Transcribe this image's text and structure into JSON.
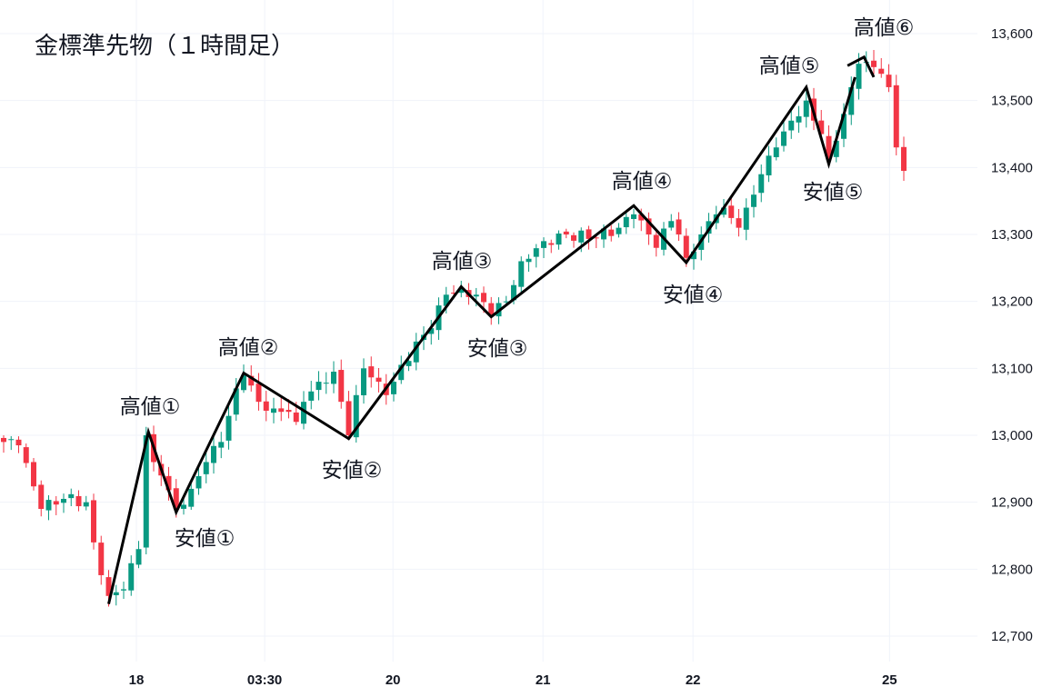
{
  "chart_data": {
    "type": "candlestick",
    "title": "金標準先物（１時間足）",
    "ylim": [
      12650,
      13660
    ],
    "yticks": [
      12700,
      12800,
      12900,
      13000,
      13100,
      13200,
      13300,
      13400,
      13500,
      13600
    ],
    "ytick_labels": [
      "12,700",
      "12,800",
      "12,900",
      "13,000",
      "13,100",
      "13,200",
      "13,300",
      "13,400",
      "13,500",
      "13,600"
    ],
    "xticks": [
      {
        "index": 17.7,
        "label": "18"
      },
      {
        "index": 34.8,
        "label": "03:30"
      },
      {
        "index": 51.9,
        "label": "20"
      },
      {
        "index": 71.9,
        "label": "21"
      },
      {
        "index": 91.9,
        "label": "22"
      },
      {
        "index": 118.1,
        "label": "25"
      }
    ],
    "candle_count": 121,
    "close_anchors": [
      [
        0,
        12990
      ],
      [
        2,
        12985
      ],
      [
        5,
        12890
      ],
      [
        8,
        12905
      ],
      [
        11,
        12900
      ],
      [
        12,
        12840
      ],
      [
        14,
        12760
      ],
      [
        16,
        12770
      ],
      [
        18,
        12830
      ],
      [
        19,
        13000
      ],
      [
        20,
        12960
      ],
      [
        21,
        12940
      ],
      [
        23,
        12890
      ],
      [
        25,
        12920
      ],
      [
        27,
        12960
      ],
      [
        29,
        12990
      ],
      [
        31,
        13070
      ],
      [
        32,
        13090
      ],
      [
        34,
        13050
      ],
      [
        36,
        13040
      ],
      [
        38,
        13035
      ],
      [
        39,
        13020
      ],
      [
        40,
        13050
      ],
      [
        42,
        13080
      ],
      [
        44,
        13095
      ],
      [
        45,
        13050
      ],
      [
        46,
        13000
      ],
      [
        47,
        13060
      ],
      [
        48,
        13100
      ],
      [
        50,
        13080
      ],
      [
        51,
        13060
      ],
      [
        52,
        13080
      ],
      [
        55,
        13140
      ],
      [
        57,
        13160
      ],
      [
        59,
        13210
      ],
      [
        61,
        13220
      ],
      [
        63,
        13210
      ],
      [
        65,
        13180
      ],
      [
        67,
        13200
      ],
      [
        69,
        13260
      ],
      [
        72,
        13290
      ],
      [
        75,
        13300
      ],
      [
        79,
        13295
      ],
      [
        82,
        13310
      ],
      [
        84,
        13330
      ],
      [
        86,
        13300
      ],
      [
        87,
        13280
      ],
      [
        89,
        13320
      ],
      [
        90,
        13300
      ],
      [
        91,
        13265
      ],
      [
        93,
        13300
      ],
      [
        95,
        13330
      ],
      [
        96,
        13340
      ],
      [
        98,
        13310
      ],
      [
        99,
        13340
      ],
      [
        101,
        13390
      ],
      [
        103,
        13430
      ],
      [
        105,
        13470
      ],
      [
        107,
        13500
      ],
      [
        108,
        13470
      ],
      [
        109,
        13450
      ],
      [
        110,
        13415
      ],
      [
        111,
        13440
      ],
      [
        112,
        13480
      ],
      [
        113,
        13520
      ],
      [
        114,
        13555
      ],
      [
        116,
        13550
      ],
      [
        117,
        13540
      ],
      [
        118,
        13520
      ],
      [
        119,
        13430
      ],
      [
        120,
        13395
      ]
    ],
    "zigzag": [
      [
        [
          14,
          12748
        ],
        [
          19.3,
          13005
        ],
        [
          23,
          12885
        ],
        [
          32,
          13093
        ],
        [
          46,
          12995
        ],
        [
          61,
          13222
        ],
        [
          65,
          13177
        ],
        [
          84,
          13343
        ],
        [
          91,
          13258
        ],
        [
          107,
          13520
        ],
        [
          110,
          13405
        ],
        [
          113.5,
          13535
        ]
      ],
      [
        [
          112.5,
          13552
        ],
        [
          114.7,
          13565
        ],
        [
          116,
          13535
        ]
      ]
    ],
    "annotations": [
      "高値①",
      "安値①",
      "高値②",
      "安値②",
      "高値③",
      "安値③",
      "高値④",
      "安値④",
      "高値⑤",
      "安値⑤",
      "高値⑥"
    ],
    "colors": {
      "up": "#089981",
      "down": "#f23645",
      "grid": "#f0f3fa",
      "line": "#000000"
    }
  }
}
